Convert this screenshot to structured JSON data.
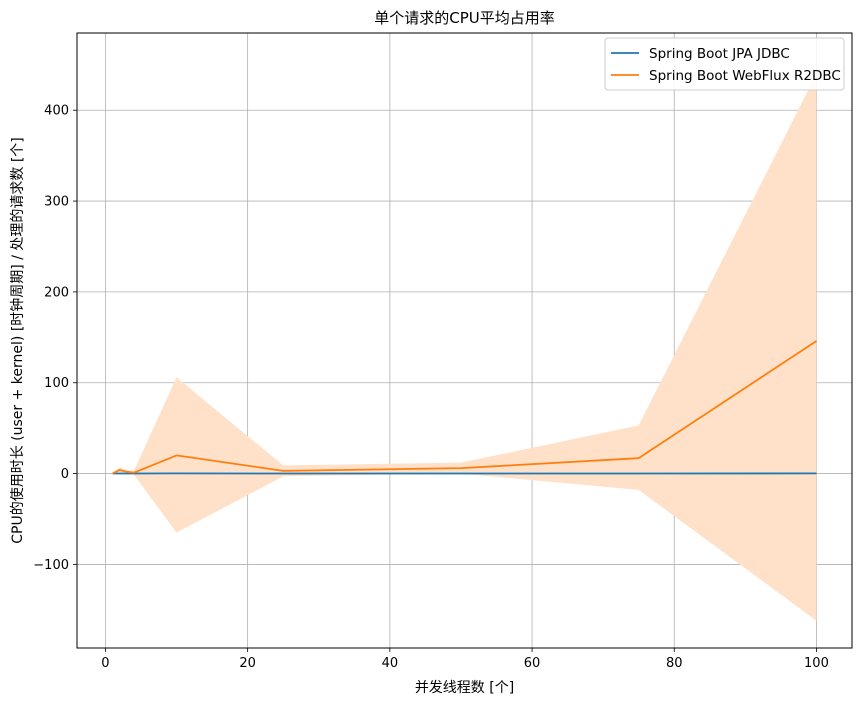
{
  "chart_data": {
    "type": "line",
    "title": "单个请求的CPU平均占用率",
    "xlabel": "并发线程数 [个]",
    "ylabel": "CPU的使用时长 (user + kernel) [时钟周期] / 处理的请求数 [个]",
    "xlim": [
      -4,
      105
    ],
    "ylim": [
      -192,
      485
    ],
    "xticks": [
      0,
      20,
      40,
      60,
      80,
      100
    ],
    "xtick_labels": [
      "0",
      "20",
      "40",
      "60",
      "80",
      "100"
    ],
    "yticks": [
      -100,
      0,
      100,
      200,
      300,
      400
    ],
    "ytick_labels": [
      "−100",
      "0",
      "100",
      "200",
      "300",
      "400"
    ],
    "grid": true,
    "legend_position": "top-right",
    "series": [
      {
        "name": "Spring Boot JPA JDBC",
        "color": "#1f77b4",
        "x": [
          1,
          2,
          3,
          4,
          10,
          25,
          50,
          75,
          100
        ],
        "y": [
          0.1,
          0.1,
          0.1,
          0.1,
          0.2,
          0.1,
          0.1,
          0.1,
          0.2
        ]
      },
      {
        "name": "Spring Boot WebFlux R2DBC",
        "color": "#ff7f0e",
        "x": [
          1,
          2,
          3,
          4,
          10,
          25,
          50,
          75,
          100
        ],
        "y": [
          0,
          4,
          2,
          1,
          20,
          3,
          6,
          17,
          146
        ],
        "band_lower": [
          0,
          1,
          0,
          -1,
          -65,
          -3,
          0,
          -18,
          -162
        ],
        "band_upper": [
          0,
          7,
          4,
          3,
          106,
          9,
          12,
          53,
          440
        ],
        "band_color": "#ffe0c8"
      }
    ]
  }
}
